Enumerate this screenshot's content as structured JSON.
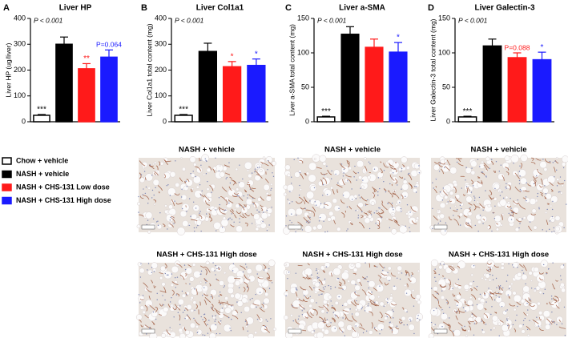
{
  "legend": [
    {
      "name": "Chow + vehicle",
      "color": "#ffffff",
      "edge": "#000000"
    },
    {
      "name": "NASH + vehicle",
      "color": "#000000",
      "edge": "#000000"
    },
    {
      "name": "NASH + CHS-131 Low dose",
      "color": "#ff1a1a",
      "edge": "#ff1a1a"
    },
    {
      "name": "NASH + CHS-131 High dose",
      "color": "#1a1aff",
      "edge": "#1a1aff"
    }
  ],
  "chart_data": [
    {
      "type": "bar",
      "panel": "A",
      "title": "Liver HP",
      "ylabel": "Liver HP (ug/liver)",
      "annotation": "P < 0.001",
      "values": [
        25,
        300,
        205,
        250
      ],
      "errors": [
        3,
        28,
        20,
        28
      ],
      "bar_annotations": [
        "***",
        null,
        "**",
        "P=0.064"
      ],
      "ylim": [
        0,
        400
      ],
      "yticks": [
        0,
        100,
        200,
        300,
        400
      ]
    },
    {
      "type": "bar",
      "panel": "B",
      "title": "Liver Col1a1",
      "ylabel": "Liver Col1a1 total content (mg)",
      "annotation": "P < 0.001",
      "values": [
        25,
        272,
        213,
        218
      ],
      "errors": [
        3,
        32,
        20,
        25
      ],
      "bar_annotations": [
        "***",
        null,
        "*",
        "*"
      ],
      "ylim": [
        0,
        400
      ],
      "yticks": [
        0,
        100,
        200,
        300,
        400
      ]
    },
    {
      "type": "bar",
      "panel": "C",
      "title": "Liver a-SMA",
      "ylabel": "Liver a-SMA total content (mg)",
      "annotation": "P < 0.001",
      "values": [
        7,
        127,
        108,
        101
      ],
      "errors": [
        1,
        11,
        12,
        14
      ],
      "bar_annotations": [
        "***",
        null,
        null,
        "*"
      ],
      "ylim": [
        0,
        150
      ],
      "yticks": [
        0,
        50,
        100,
        150
      ]
    },
    {
      "type": "bar",
      "panel": "D",
      "title": "Liver Galectin-3",
      "ylabel": "Liver Galectin-3 total content (mg)",
      "annotation": "P < 0.001",
      "values": [
        7,
        110,
        93,
        90
      ],
      "errors": [
        1,
        10,
        7,
        11
      ],
      "bar_annotations": [
        "***",
        null,
        "P=0.088",
        "*"
      ],
      "ylim": [
        0,
        150
      ],
      "yticks": [
        0,
        50,
        100,
        150
      ]
    }
  ],
  "micrographs": [
    "NASH + vehicle",
    "NASH + vehicle",
    "NASH + vehicle",
    "NASH + CHS-131 High dose",
    "NASH + CHS-131 High dose",
    "NASH + CHS-131 High dose"
  ]
}
